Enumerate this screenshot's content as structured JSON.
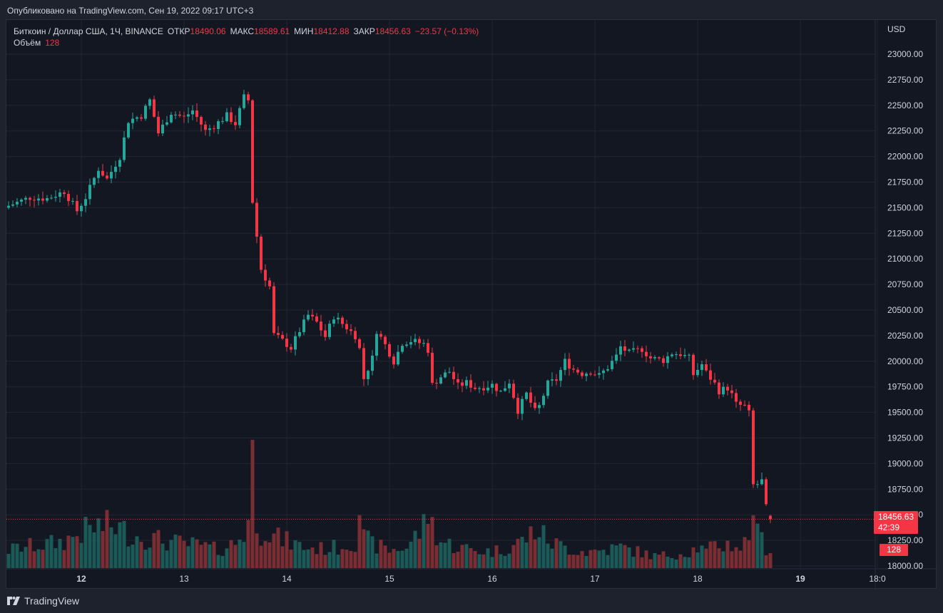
{
  "caption": "Опубликовано на TradingView.com, Сен 19, 2022 09:17 UTC+3",
  "legend": {
    "symbol": "Биткоин / Доллар США, 1Ч, BINANCE",
    "open_label": "ОТКР",
    "open": "18490.06",
    "high_label": "МАКС",
    "high": "18589.61",
    "low_label": "МИН",
    "low": "18412.88",
    "close_label": "ЗАКР",
    "close": "18456.63",
    "change": "−23.57 (−0.13%)",
    "volume_label": "Объём",
    "volume": "128"
  },
  "price_tag": {
    "price": "18456.63",
    "countdown": "42:39",
    "volume": "128"
  },
  "branding": "TradingView",
  "colors": {
    "up": "#26a69a",
    "down": "#f23645",
    "volume_up": "#1b5a57",
    "volume_down": "#7a2d33",
    "background": "#131722",
    "grid": "#232632",
    "text": "#d1d4dc"
  },
  "chart_data": {
    "type": "candlestick",
    "currency": "USD",
    "y_ticks": [
      "23000.00",
      "22750.00",
      "22500.00",
      "22250.00",
      "22000.00",
      "21750.00",
      "21500.00",
      "21250.00",
      "21000.00",
      "20750.00",
      "20500.00",
      "20250.00",
      "20000.00",
      "19750.00",
      "19500.00",
      "19250.00",
      "19000.00",
      "18750.00",
      "18500.00",
      "18250.00",
      "18000.00"
    ],
    "ylim": [
      18000,
      23000
    ],
    "x_ticks": [
      {
        "label": "12",
        "hour": 24,
        "bold": true
      },
      {
        "label": "13",
        "hour": 48
      },
      {
        "label": "14",
        "hour": 72
      },
      {
        "label": "15",
        "hour": 96
      },
      {
        "label": "16",
        "hour": 120
      },
      {
        "label": "17",
        "hour": 144
      },
      {
        "label": "18",
        "hour": 168
      },
      {
        "label": "19",
        "hour": 192,
        "bold": true
      },
      {
        "label": "18:0",
        "hour": 210
      }
    ],
    "first_candle_hour": 7,
    "hourly_close_keypoints": [
      [
        7,
        21520
      ],
      [
        12,
        21600
      ],
      [
        16,
        21590
      ],
      [
        20,
        21660
      ],
      [
        23,
        21470
      ],
      [
        25,
        21600
      ],
      [
        28,
        21880
      ],
      [
        30,
        21780
      ],
      [
        33,
        22000
      ],
      [
        35,
        22350
      ],
      [
        38,
        22400
      ],
      [
        40,
        22550
      ],
      [
        42,
        22230
      ],
      [
        45,
        22430
      ],
      [
        48,
        22380
      ],
      [
        50,
        22450
      ],
      [
        53,
        22250
      ],
      [
        55,
        22300
      ],
      [
        58,
        22400
      ],
      [
        60,
        22320
      ],
      [
        62,
        22580
      ],
      [
        63,
        22550
      ],
      [
        64,
        21560
      ],
      [
        65,
        21220
      ],
      [
        66,
        20900
      ],
      [
        68,
        20730
      ],
      [
        69,
        20260
      ],
      [
        71,
        20200
      ],
      [
        73,
        20130
      ],
      [
        75,
        20300
      ],
      [
        77,
        20450
      ],
      [
        79,
        20380
      ],
      [
        81,
        20240
      ],
      [
        83,
        20440
      ],
      [
        86,
        20330
      ],
      [
        88,
        20250
      ],
      [
        89,
        20120
      ],
      [
        90,
        19830
      ],
      [
        92,
        20030
      ],
      [
        93,
        20300
      ],
      [
        95,
        20160
      ],
      [
        97,
        20000
      ],
      [
        99,
        20180
      ],
      [
        101,
        20200
      ],
      [
        104,
        20170
      ],
      [
        105,
        20110
      ],
      [
        106,
        19770
      ],
      [
        108,
        19850
      ],
      [
        110,
        19900
      ],
      [
        112,
        19760
      ],
      [
        114,
        19790
      ],
      [
        116,
        19740
      ],
      [
        118,
        19750
      ],
      [
        120,
        19770
      ],
      [
        122,
        19700
      ],
      [
        124,
        19800
      ],
      [
        126,
        19520
      ],
      [
        128,
        19680
      ],
      [
        130,
        19510
      ],
      [
        131,
        19560
      ],
      [
        133,
        19780
      ],
      [
        135,
        19820
      ],
      [
        137,
        20000
      ],
      [
        139,
        19920
      ],
      [
        141,
        19880
      ],
      [
        143,
        19900
      ],
      [
        145,
        19860
      ],
      [
        147,
        19940
      ],
      [
        149,
        20050
      ],
      [
        150,
        20140
      ],
      [
        152,
        20080
      ],
      [
        155,
        20120
      ],
      [
        157,
        20030
      ],
      [
        160,
        20010
      ],
      [
        162,
        20080
      ],
      [
        164,
        20070
      ],
      [
        166,
        20030
      ],
      [
        167,
        19870
      ],
      [
        169,
        19970
      ],
      [
        170,
        19890
      ],
      [
        172,
        19780
      ],
      [
        173,
        19710
      ],
      [
        175,
        19740
      ],
      [
        176,
        19670
      ],
      [
        177,
        19580
      ],
      [
        179,
        19560
      ],
      [
        180,
        19490
      ],
      [
        181,
        18790
      ],
      [
        182,
        18800
      ],
      [
        183,
        18830
      ],
      [
        184,
        18570
      ],
      [
        185,
        18456
      ]
    ],
    "volume_keypoints": [
      [
        7,
        60
      ],
      [
        10,
        70
      ],
      [
        16,
        80
      ],
      [
        20,
        90
      ],
      [
        24,
        120
      ],
      [
        28,
        140
      ],
      [
        32,
        140
      ],
      [
        36,
        110
      ],
      [
        40,
        100
      ],
      [
        44,
        90
      ],
      [
        48,
        80
      ],
      [
        52,
        75
      ],
      [
        56,
        60
      ],
      [
        60,
        85
      ],
      [
        62,
        120
      ],
      [
        63,
        160
      ],
      [
        64,
        430
      ],
      [
        65,
        170
      ],
      [
        66,
        120
      ],
      [
        67,
        145
      ],
      [
        68,
        110
      ],
      [
        72,
        90
      ],
      [
        76,
        70
      ],
      [
        80,
        65
      ],
      [
        84,
        70
      ],
      [
        88,
        90
      ],
      [
        89,
        210
      ],
      [
        90,
        100
      ],
      [
        92,
        80
      ],
      [
        96,
        60
      ],
      [
        100,
        70
      ],
      [
        104,
        140
      ],
      [
        105,
        190
      ],
      [
        106,
        145
      ],
      [
        108,
        90
      ],
      [
        112,
        70
      ],
      [
        116,
        60
      ],
      [
        120,
        55
      ],
      [
        124,
        70
      ],
      [
        128,
        100
      ],
      [
        130,
        130
      ],
      [
        134,
        85
      ],
      [
        138,
        65
      ],
      [
        142,
        55
      ],
      [
        146,
        60
      ],
      [
        150,
        70
      ],
      [
        154,
        55
      ],
      [
        158,
        40
      ],
      [
        162,
        45
      ],
      [
        166,
        55
      ],
      [
        168,
        70
      ],
      [
        170,
        55
      ],
      [
        172,
        75
      ],
      [
        176,
        80
      ],
      [
        178,
        70
      ],
      [
        180,
        100
      ],
      [
        181,
        240
      ],
      [
        182,
        110
      ],
      [
        183,
        95
      ],
      [
        184,
        70
      ],
      [
        185,
        60
      ]
    ],
    "volume_max": 430
  }
}
